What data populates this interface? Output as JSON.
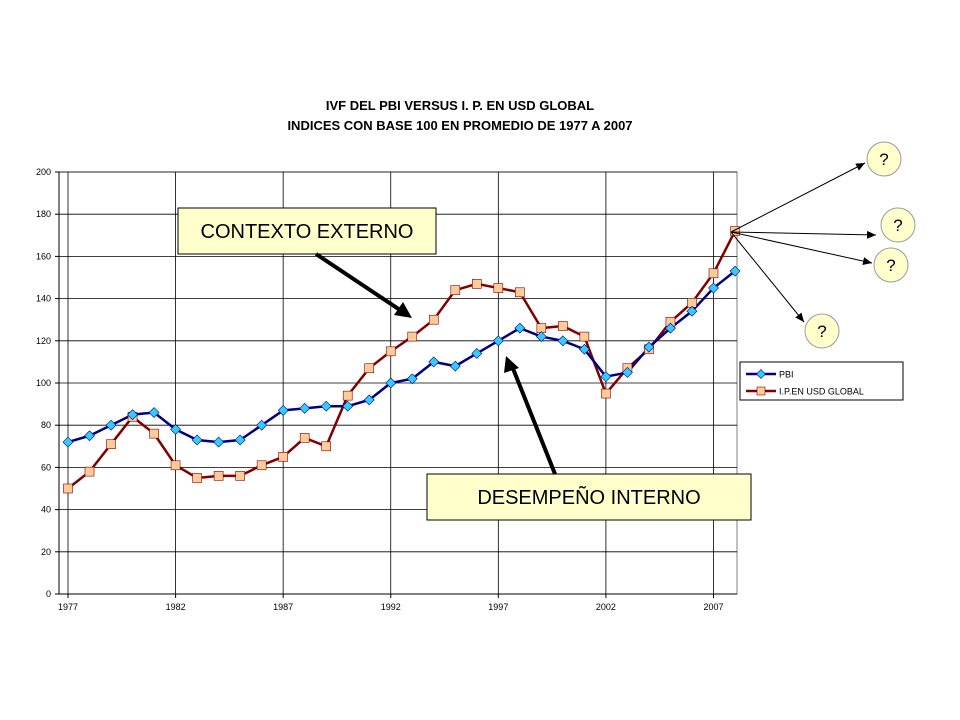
{
  "chart_data": {
    "type": "line",
    "title": "IVF DEL PBI VERSUS I. P. EN USD GLOBAL",
    "subtitle": "INDICES CON BASE 100 EN PROMEDIO DE 1977 A 2007",
    "xlabel": "",
    "ylabel": "",
    "xlim": [
      1977,
      2008
    ],
    "ylim": [
      0,
      200
    ],
    "x_ticks": [
      "1977",
      "1982",
      "1987",
      "1992",
      "1997",
      "2002",
      "2007"
    ],
    "y_ticks": [
      "0",
      "20",
      "40",
      "60",
      "80",
      "100",
      "120",
      "140",
      "160",
      "180",
      "200"
    ],
    "grid": true,
    "legend_position": "right",
    "x": [
      1977,
      1978,
      1979,
      1980,
      1981,
      1982,
      1983,
      1984,
      1985,
      1986,
      1987,
      1988,
      1989,
      1990,
      1991,
      1992,
      1993,
      1994,
      1995,
      1996,
      1997,
      1998,
      1999,
      2000,
      2001,
      2002,
      2003,
      2004,
      2005,
      2006,
      2007,
      2008
    ],
    "series": [
      {
        "name": "PBI",
        "color": "#000080",
        "marker_color": "#33ccff",
        "marker": "diamond",
        "values": [
          72,
          75,
          80,
          85,
          86,
          78,
          73,
          72,
          73,
          80,
          87,
          88,
          89,
          89,
          92,
          100,
          102,
          110,
          108,
          114,
          120,
          126,
          122,
          120,
          116,
          103,
          105,
          117,
          126,
          134,
          145,
          153
        ]
      },
      {
        "name": "I.P.EN USD GLOBAL",
        "color": "#800000",
        "marker_color": "#ffcc99",
        "marker": "square",
        "values": [
          50,
          58,
          71,
          84,
          76,
          61,
          55,
          56,
          56,
          61,
          65,
          74,
          70,
          94,
          107,
          115,
          122,
          130,
          144,
          147,
          145,
          143,
          126,
          127,
          122,
          95,
          107,
          116,
          129,
          138,
          152,
          172
        ]
      }
    ],
    "annotations": {
      "external_label": "CONTEXTO EXTERNO",
      "internal_label": "DESEMPEÑO INTERNO",
      "question_marks": [
        "?",
        "?",
        "?",
        "?"
      ],
      "box_fill": "#ffffcc"
    }
  }
}
